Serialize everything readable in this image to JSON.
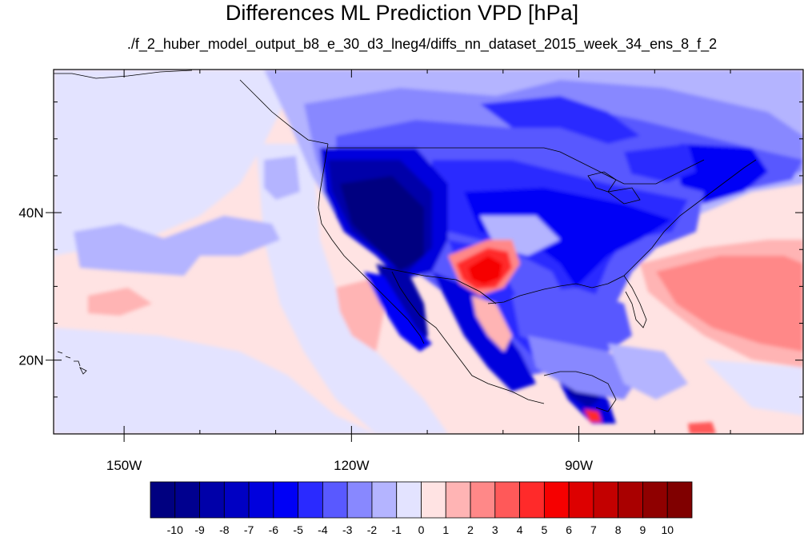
{
  "title": "Differences ML Prediction VPD [hPa]",
  "subtitle": "./f_2_huber_model_output_b8_e_30_d3_lneg4/diffs_nn_dataset_2015_week_34_ens_8_f_2",
  "map": {
    "projection": "cylindrical-equidistant",
    "lon_range": [
      -159.3,
      -60.4
    ],
    "lat_range": [
      10.0,
      59.4
    ],
    "lon_ticks": [
      {
        "value": -150,
        "label": "150W"
      },
      {
        "value": -120,
        "label": "120W"
      },
      {
        "value": -90,
        "label": "90W"
      }
    ],
    "lat_ticks": [
      {
        "value": 40,
        "label": "40N"
      },
      {
        "value": 20,
        "label": "20N"
      }
    ],
    "background_value": 0.5
  },
  "colorbar": {
    "levels": [
      "-10",
      "-9",
      "-8",
      "-7",
      "-6",
      "-5",
      "-4",
      "-3",
      "-2",
      "-1",
      "0",
      "1",
      "2",
      "3",
      "4",
      "5",
      "6",
      "7",
      "8",
      "9",
      "10"
    ],
    "colors": [
      "#000080",
      "#00008f",
      "#0000a9",
      "#0000c3",
      "#0000dd",
      "#0000f6",
      "#2a2aff",
      "#5959ff",
      "#8888ff",
      "#b4b4ff",
      "#e3e3ff",
      "#ffe3e3",
      "#ffb4b4",
      "#ff8888",
      "#ff5959",
      "#ff2a2a",
      "#f60000",
      "#dd0000",
      "#c30000",
      "#a90000",
      "#8f0000",
      "#800000"
    ]
  }
}
